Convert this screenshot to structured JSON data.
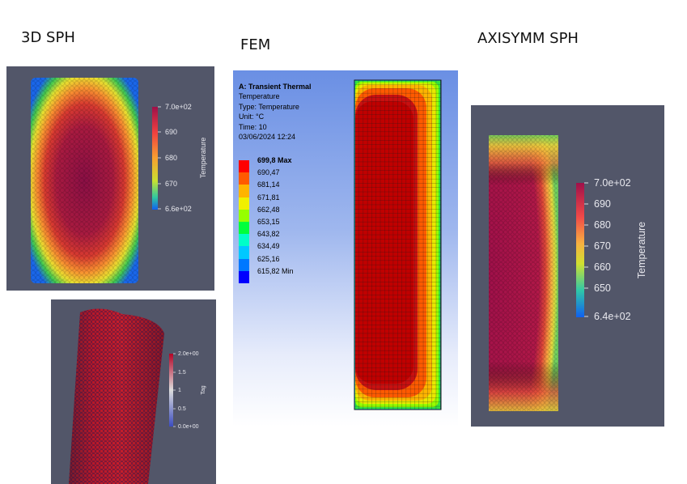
{
  "titles": {
    "sph3d": "3D SPH",
    "fem": "FEM",
    "axisymm": "AXISYMM SPH"
  },
  "sph3d_temp": {
    "colorbar": {
      "title": "Temperature",
      "ticks": [
        "7.0e+02",
        "690",
        "680",
        "670",
        "6.6e+02"
      ]
    }
  },
  "sph3d_tag": {
    "colorbar": {
      "title": "Tag",
      "ticks": [
        "2.0e+00",
        "1.5",
        "1",
        "0.5",
        "0.0e+00"
      ]
    }
  },
  "fem": {
    "info": [
      "A: Transient Thermal",
      "Temperature",
      "Type: Temperature",
      "Unit: °C",
      "Time: 10",
      "03/06/2024 12:24"
    ],
    "legend": [
      "699,8 Max",
      "690,47",
      "681,14",
      "671,81",
      "662,48",
      "653,15",
      "643,82",
      "634,49",
      "625,16",
      "615,82 Min"
    ],
    "legend_colors": [
      "#ff0000",
      "#ff5a00",
      "#ffb400",
      "#f0f000",
      "#96ff00",
      "#00ff3c",
      "#00ffc8",
      "#00c8ff",
      "#0078ff",
      "#0000ff"
    ]
  },
  "axisymm": {
    "colorbar": {
      "title": "Temperature",
      "ticks": [
        "7.0e+02",
        "690",
        "680",
        "670",
        "660",
        "650",
        "6.4e+02"
      ]
    }
  }
}
